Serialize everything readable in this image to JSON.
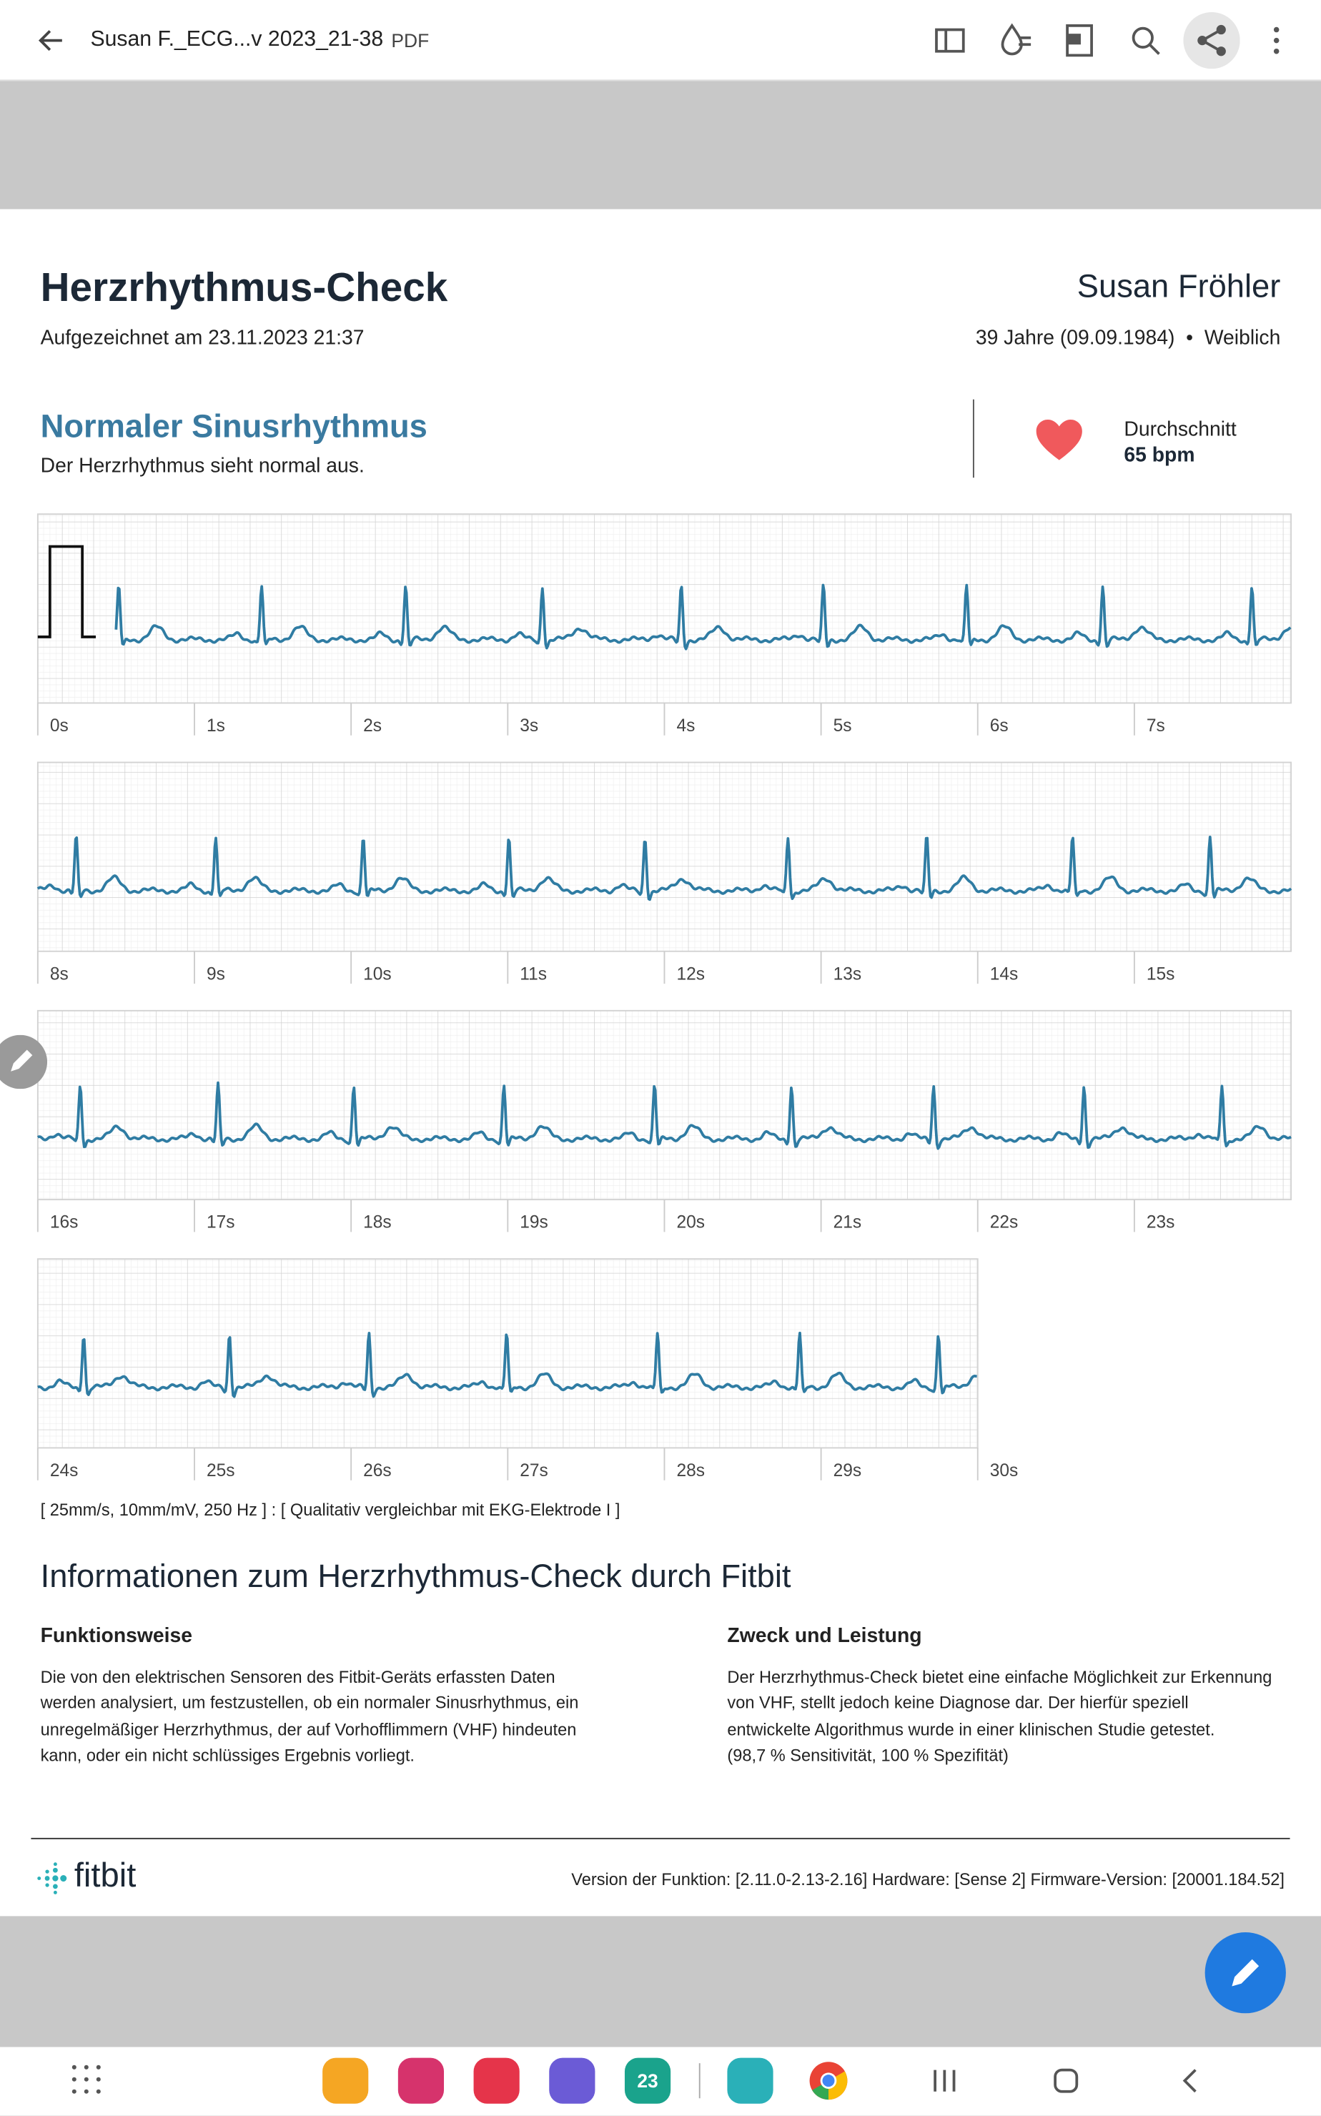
{
  "toolbar": {
    "title": "Susan F._ECG...v 2023_21-38",
    "file_type": "PDF"
  },
  "report": {
    "title": "Herzrhythmus-Check",
    "recorded": "Aufgezeichnet am 23.11.2023 21:37",
    "patient_name": "Susan Fröhler",
    "patient_info": "39 Jahre (09.09.1984)",
    "gender": "Weiblich",
    "result_title": "Normaler Sinusrhythmus",
    "result_text": "Der Herzrhythmus sieht normal aus.",
    "average_label": "Durchschnitt",
    "average_value": "65 bpm"
  },
  "ecg": {
    "strips": [
      {
        "ticks": [
          "0s",
          "1s",
          "2s",
          "3s",
          "4s",
          "5s",
          "6s",
          "7s"
        ]
      },
      {
        "ticks": [
          "8s",
          "9s",
          "10s",
          "11s",
          "12s",
          "13s",
          "14s",
          "15s"
        ]
      },
      {
        "ticks": [
          "16s",
          "17s",
          "18s",
          "19s",
          "20s",
          "21s",
          "22s",
          "23s"
        ]
      },
      {
        "ticks": [
          "24s",
          "25s",
          "26s",
          "27s",
          "28s",
          "29s",
          "30s"
        ]
      }
    ],
    "footnote": "[ 25mm/s, 10mm/mV, 250 Hz ] : [ Qualitativ vergleichbar mit EKG-Elektrode I ]"
  },
  "info": {
    "title": "Informationen zum Herzrhythmus-Check durch Fitbit",
    "left_heading": "Funktionsweise",
    "left_lines": [
      "Die von den elektrischen Sensoren des Fitbit-Geräts erfassten Daten",
      "werden analysiert, um festzustellen, ob ein normaler Sinusrhythmus, ein",
      "unregelmäßiger Herzrhythmus, der auf Vorhofflimmern (VHF) hindeuten",
      "kann, oder ein nicht schlüssiges Ergebnis vorliegt."
    ],
    "right_heading": "Zweck und Leistung",
    "right_lines": [
      "Der Herzrhythmus-Check bietet eine einfache Möglichkeit zur Erkennung",
      "von VHF, stellt jedoch keine Diagnose dar. Der hierfür speziell",
      "entwickelte Algorithmus wurde in einer klinischen Studie getestet.",
      "(98,7 % Sensitivität, 100 % Spezifität)"
    ]
  },
  "footer": {
    "brand": "fitbit",
    "version": "Version der Funktion: [2.11.0-2.13-2.16] Hardware: [Sense 2] Firmware-Version: [20001.184.52]"
  },
  "taskbar": {
    "calendar_day": "23"
  }
}
